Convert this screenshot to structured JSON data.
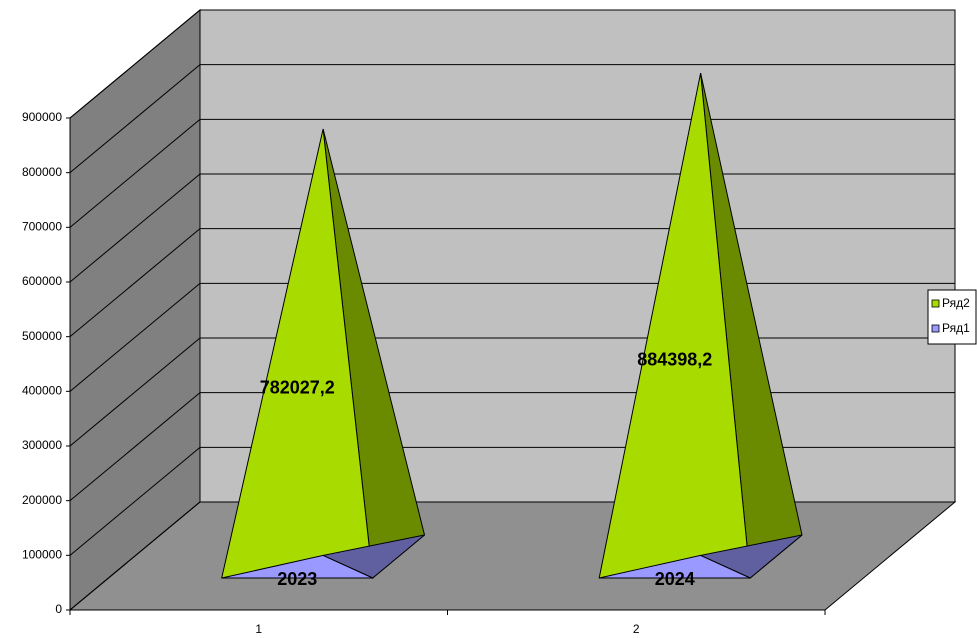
{
  "chart_data": {
    "type": "pyramid3d",
    "categories": [
      "1",
      "2"
    ],
    "series": [
      {
        "name": "Ряд2",
        "color": "#a8dc00",
        "values": [
          782027.2,
          884398.2
        ],
        "value_labels": [
          "782027,2",
          "884398,2"
        ]
      },
      {
        "name": "Ряд1",
        "color": "#9999ff",
        "values": [
          2023,
          2024
        ],
        "value_labels": [
          "2023",
          "2024"
        ]
      }
    ],
    "ylim": [
      0,
      900000
    ],
    "yticks": [
      0,
      100000,
      200000,
      300000,
      400000,
      500000,
      600000,
      700000,
      800000,
      900000
    ],
    "grid": true,
    "legend": "right"
  }
}
